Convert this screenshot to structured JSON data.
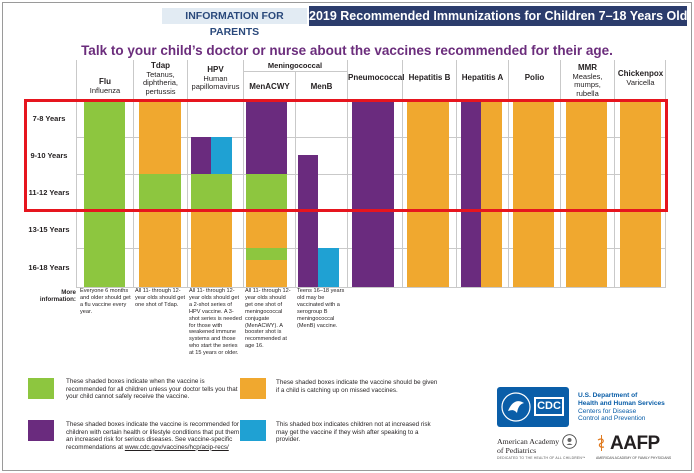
{
  "header": {
    "left_tag": "INFORMATION FOR PARENTS",
    "title": "2019 Recommended Immunizations for Children 7–18 Years Old"
  },
  "tagline": "Talk to your child’s doctor or nurse about the vaccines recommended for their age.",
  "meningococcal_group": "Meningococcal",
  "columns": [
    {
      "name": "Flu",
      "sub": "Influenza"
    },
    {
      "name": "Tdap",
      "sub": "Tetanus, diphtheria, pertussis"
    },
    {
      "name": "HPV",
      "sub": "Human papillomavirus"
    },
    {
      "name": "MenACWY",
      "sub": ""
    },
    {
      "name": "MenB",
      "sub": ""
    },
    {
      "name": "Pneumococcal",
      "sub": ""
    },
    {
      "name": "Hepatitis B",
      "sub": ""
    },
    {
      "name": "Hepatitis A",
      "sub": ""
    },
    {
      "name": "Polio",
      "sub": ""
    },
    {
      "name": "MMR",
      "sub": "Measles, mumps, rubella"
    },
    {
      "name": "Chickenpox",
      "sub": "Varicella"
    }
  ],
  "age_groups": [
    "7-8 Years",
    "9-10 Years",
    "11-12 Years",
    "13-15 Years",
    "16-18 Years"
  ],
  "more_info_label": "More information:",
  "more_info": [
    "Everyone 6 months and older should get a flu vaccine every year.",
    "All 11- through 12-year olds should get one shot of Tdap.",
    "All 11- through 12-year olds should get a 2-shot series of HPV vaccine. A 3-shot series is needed for those with weakened immune systems and those who start the series at 15 years or older.",
    "All 11- through 12-year olds should get one shot of meningococcal conjugate (MenACWY). A booster shot is recommended at age 16.",
    "Teens 16–18 years old may be vaccinated with a serogroup B meningococcal (MenB) vaccine."
  ],
  "legend": {
    "green": "These shaded boxes indicate when the vaccine is recommended for all children unless your doctor tells you that your child cannot safely receive the vaccine.",
    "orange": "These shaded boxes indicate the vaccine should be given if a child is catching up on missed vaccines.",
    "purple": "These shaded boxes indicate the vaccine is recommended for children with certain health or lifestyle conditions that put them at an increased risk for serious diseases. See vaccine-specific recommendations at",
    "purple_link": "www.cdc.gov/vaccines/hcp/acip-recs/",
    "blue": "This shaded box indicates children not at increased risk may get the vaccine if they wish after speaking to a provider."
  },
  "logos": {
    "cdc_mark": "CDC",
    "cdc_line1": "U.S. Department of",
    "cdc_line2": "Health and Human Services",
    "cdc_line3": "Centers for Disease",
    "cdc_line4": "Control and Prevention",
    "aap_line1": "American Academy",
    "aap_line2": "of Pediatrics",
    "aap_tagline": "DEDICATED TO THE HEALTH OF ALL CHILDREN™",
    "aafp": "AAFP",
    "aafp_sub": "AMERICAN ACADEMY OF FAMILY PHYSICIANS"
  },
  "colors": {
    "green": "#8dc63f",
    "orange": "#f0a82f",
    "purple": "#6a2b7e",
    "blue": "#1fa1d3",
    "header_navy": "#2b3c6c",
    "highlight_red": "#e6151e"
  }
}
